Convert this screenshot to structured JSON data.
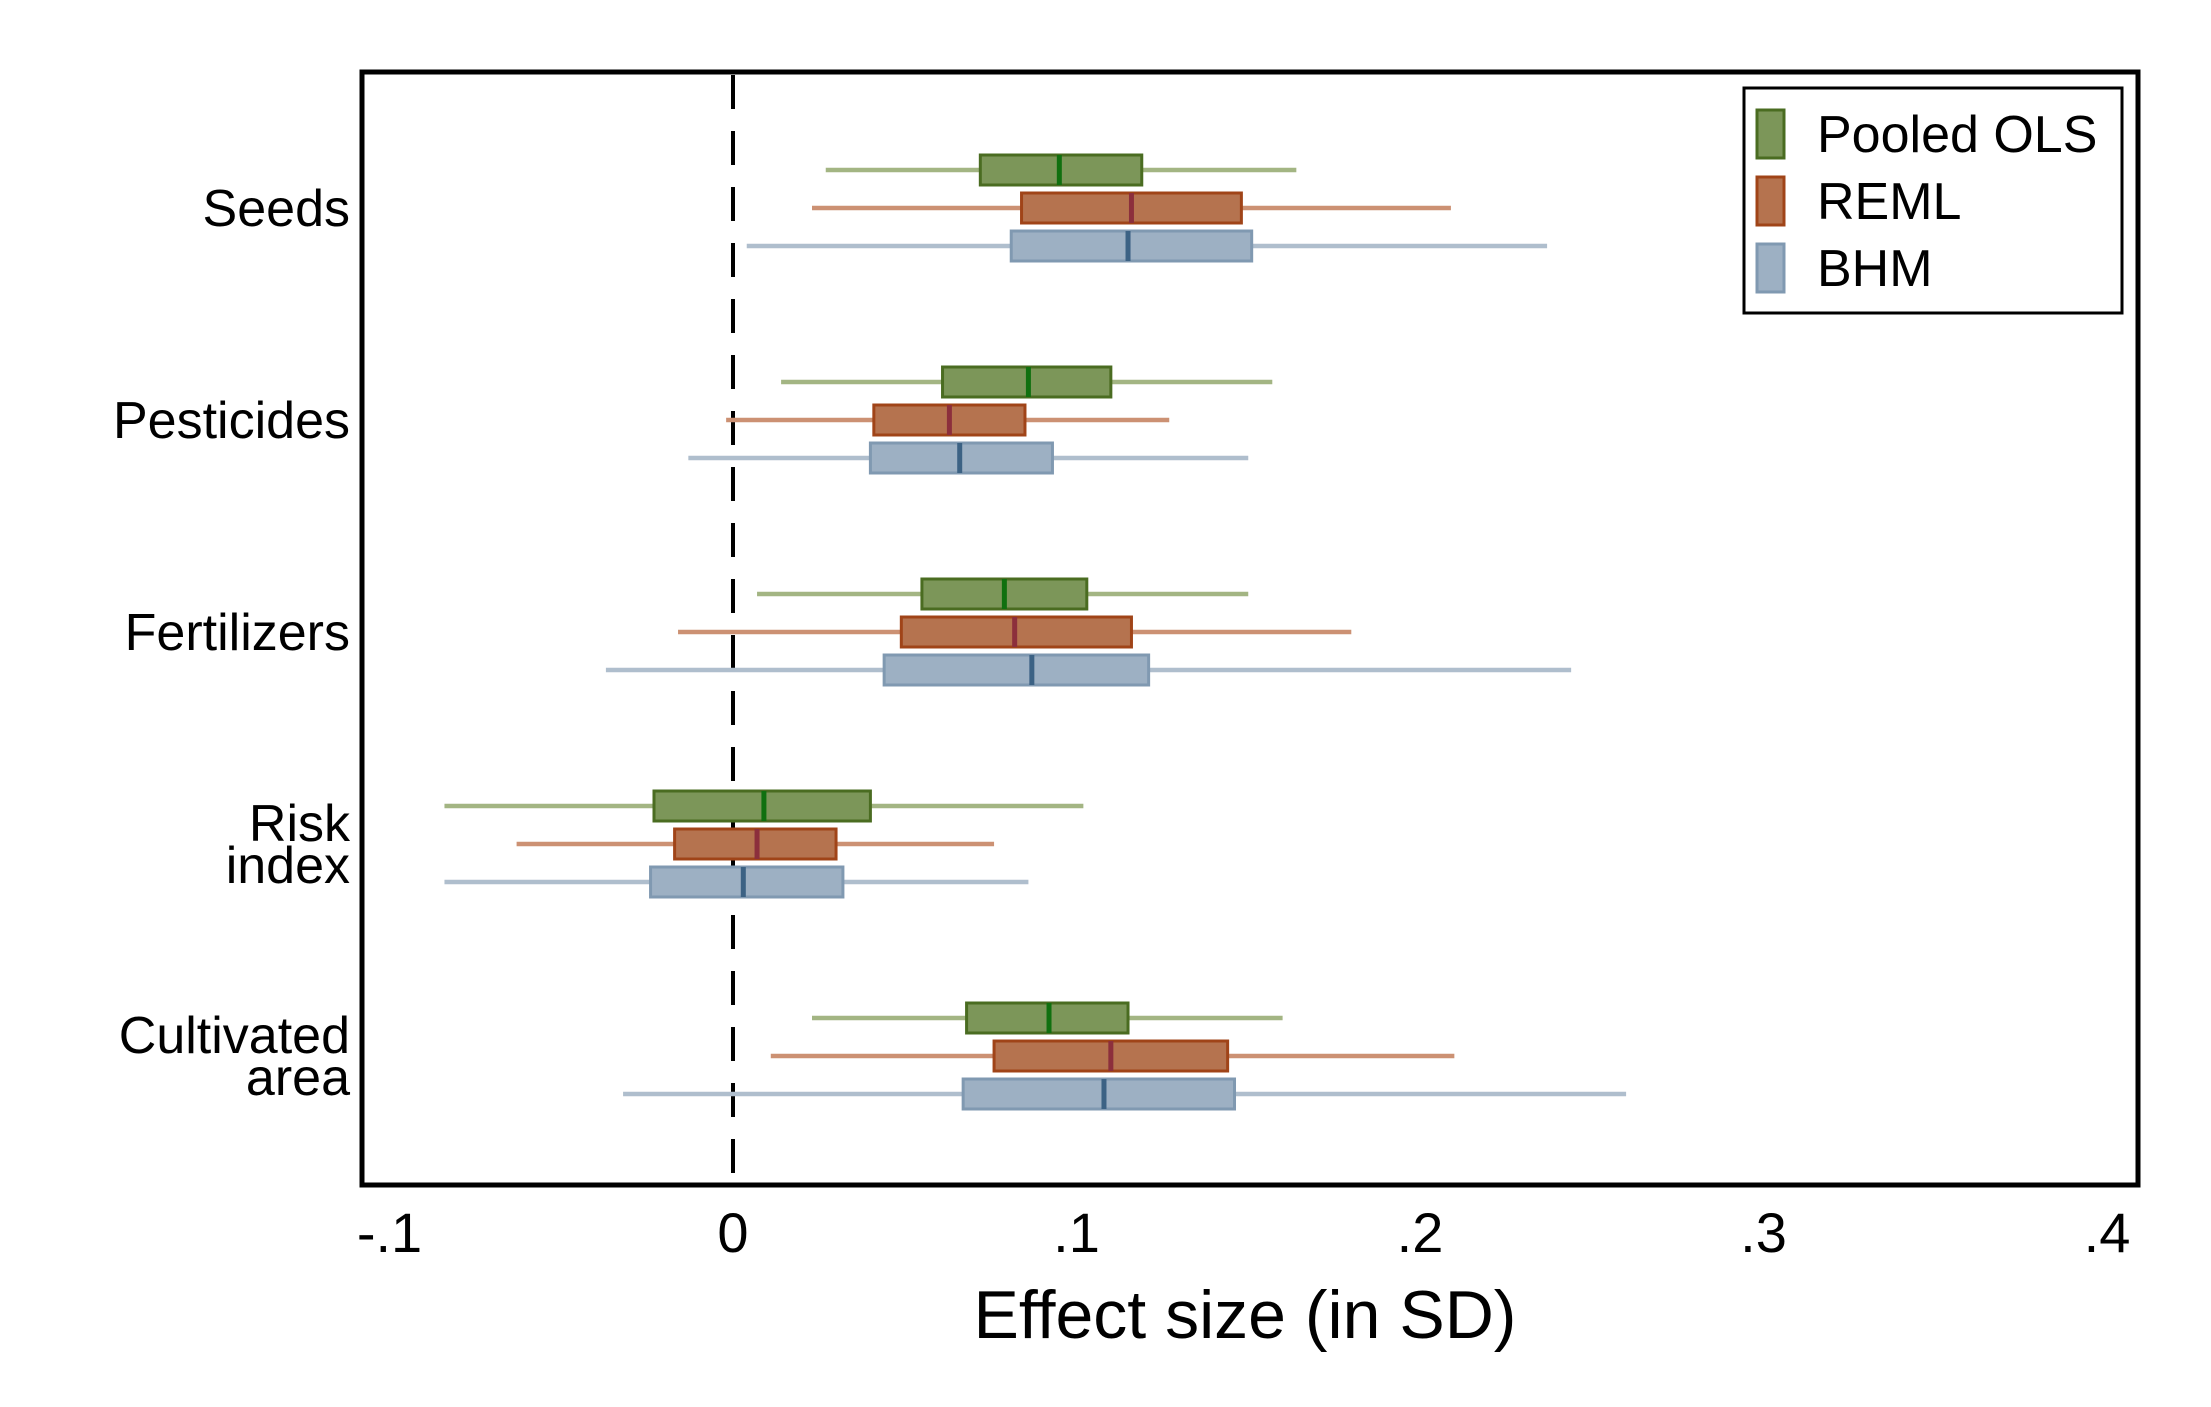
{
  "figure": {
    "background": "#ffffff",
    "frame_color": "#000000",
    "zero_line_color": "#000000"
  },
  "chart_data": {
    "type": "box",
    "orientation": "horizontal",
    "title": "",
    "xlabel": "Effect size (in SD)",
    "xlim": [
      -0.108,
      0.409
    ],
    "zero_reference_line": 0,
    "grid": false,
    "legend_position": "top-right",
    "x_ticks": [
      {
        "value": -0.1,
        "label": "-.1"
      },
      {
        "value": 0.0,
        "label": "0"
      },
      {
        "value": 0.1,
        "label": ".1"
      },
      {
        "value": 0.2,
        "label": ".2"
      },
      {
        "value": 0.3,
        "label": ".3"
      },
      {
        "value": 0.4,
        "label": ".4"
      }
    ],
    "series": [
      {
        "name": "Pooled OLS",
        "fill": "#7C9659",
        "stroke": "#4A6C21",
        "median_color": "#10700F",
        "whisker_color": "#A3B583"
      },
      {
        "name": "REML",
        "fill": "#B5734F",
        "stroke": "#A04418",
        "median_color": "#8C2F3C",
        "whisker_color": "#CC9173"
      },
      {
        "name": "BHM",
        "fill": "#9DB0C3",
        "stroke": "#8099B1",
        "median_color": "#3C6284",
        "whisker_color": "#AFBECD"
      }
    ],
    "groups": [
      {
        "label": "Seeds",
        "label_lines": [
          "Seeds"
        ],
        "boxes": [
          {
            "series": "Pooled OLS",
            "whisker_lo": 0.027,
            "q1": 0.072,
            "median": 0.095,
            "q3": 0.119,
            "whisker_hi": 0.164
          },
          {
            "series": "REML",
            "whisker_lo": 0.023,
            "q1": 0.084,
            "median": 0.116,
            "q3": 0.148,
            "whisker_hi": 0.209
          },
          {
            "series": "BHM",
            "whisker_lo": 0.004,
            "q1": 0.081,
            "median": 0.115,
            "q3": 0.151,
            "whisker_hi": 0.237
          }
        ]
      },
      {
        "label": "Pesticides",
        "label_lines": [
          "Pesticides"
        ],
        "boxes": [
          {
            "series": "Pooled OLS",
            "whisker_lo": 0.014,
            "q1": 0.061,
            "median": 0.086,
            "q3": 0.11,
            "whisker_hi": 0.157
          },
          {
            "series": "REML",
            "whisker_lo": -0.002,
            "q1": 0.041,
            "median": 0.063,
            "q3": 0.085,
            "whisker_hi": 0.127
          },
          {
            "series": "BHM",
            "whisker_lo": -0.013,
            "q1": 0.04,
            "median": 0.066,
            "q3": 0.093,
            "whisker_hi": 0.15
          }
        ]
      },
      {
        "label": "Fertilizers",
        "label_lines": [
          "Fertilizers"
        ],
        "boxes": [
          {
            "series": "Pooled OLS",
            "whisker_lo": 0.007,
            "q1": 0.055,
            "median": 0.079,
            "q3": 0.103,
            "whisker_hi": 0.15
          },
          {
            "series": "REML",
            "whisker_lo": -0.016,
            "q1": 0.049,
            "median": 0.082,
            "q3": 0.116,
            "whisker_hi": 0.18
          },
          {
            "series": "BHM",
            "whisker_lo": -0.037,
            "q1": 0.044,
            "median": 0.087,
            "q3": 0.121,
            "whisker_hi": 0.244
          }
        ]
      },
      {
        "label": "Risk index",
        "label_lines": [
          "Risk",
          "index"
        ],
        "boxes": [
          {
            "series": "Pooled OLS",
            "whisker_lo": -0.084,
            "q1": -0.023,
            "median": 0.009,
            "q3": 0.04,
            "whisker_hi": 0.102
          },
          {
            "series": "REML",
            "whisker_lo": -0.063,
            "q1": -0.017,
            "median": 0.007,
            "q3": 0.03,
            "whisker_hi": 0.076
          },
          {
            "series": "BHM",
            "whisker_lo": -0.084,
            "q1": -0.024,
            "median": 0.003,
            "q3": 0.032,
            "whisker_hi": 0.086
          }
        ]
      },
      {
        "label": "Cultivated area",
        "label_lines": [
          "Cultivated",
          "area"
        ],
        "boxes": [
          {
            "series": "Pooled OLS",
            "whisker_lo": 0.023,
            "q1": 0.068,
            "median": 0.092,
            "q3": 0.115,
            "whisker_hi": 0.16
          },
          {
            "series": "REML",
            "whisker_lo": 0.011,
            "q1": 0.076,
            "median": 0.11,
            "q3": 0.144,
            "whisker_hi": 0.21
          },
          {
            "series": "BHM",
            "whisker_lo": -0.032,
            "q1": 0.067,
            "median": 0.108,
            "q3": 0.146,
            "whisker_hi": 0.26
          }
        ]
      }
    ]
  }
}
